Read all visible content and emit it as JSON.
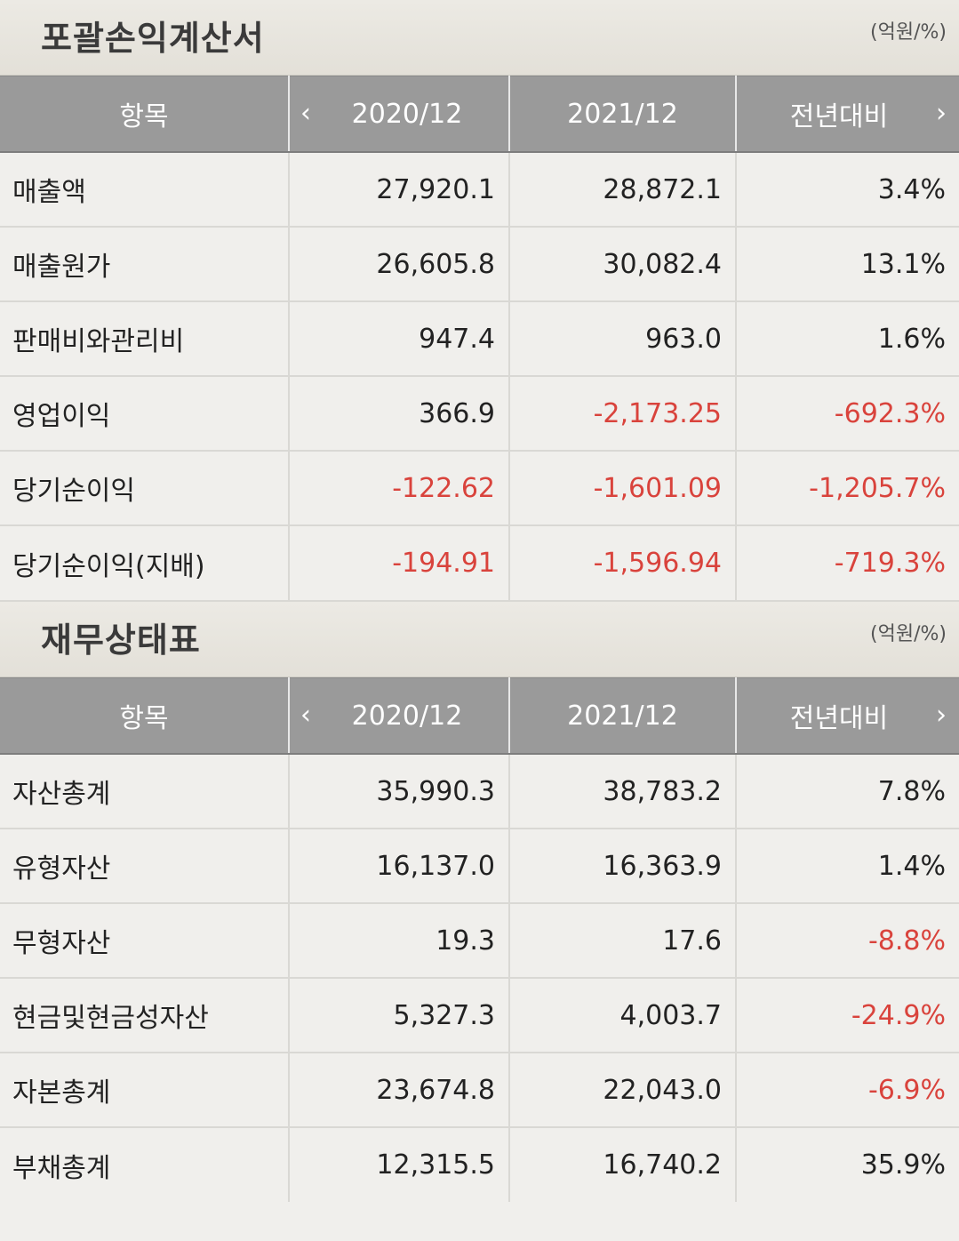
{
  "income": {
    "title": "포괄손익계산서",
    "unit": "(억원/%)",
    "headers": {
      "item": "항목",
      "y1": "2020/12",
      "y2": "2021/12",
      "yoy": "전년대비",
      "prev_icon": "chevron-left-icon",
      "next_icon": "chevron-right-icon"
    },
    "rows": [
      {
        "label": "매출액",
        "y1": "27,920.1",
        "y2": "28,872.1",
        "yoy": "3.4%"
      },
      {
        "label": "매출원가",
        "y1": "26,605.8",
        "y2": "30,082.4",
        "yoy": "13.1%"
      },
      {
        "label": "판매비와관리비",
        "y1": "947.4",
        "y2": "963.0",
        "yoy": "1.6%"
      },
      {
        "label": "영업이익",
        "y1": "366.9",
        "y2": "-2,173.25",
        "yoy": "-692.3%"
      },
      {
        "label": "당기순이익",
        "y1": "-122.62",
        "y2": "-1,601.09",
        "yoy": "-1,205.7%"
      },
      {
        "label": "당기순이익(지배)",
        "y1": "-194.91",
        "y2": "-1,596.94",
        "yoy": "-719.3%"
      }
    ]
  },
  "balance": {
    "title": "재무상태표",
    "unit": "(억원/%)",
    "headers": {
      "item": "항목",
      "y1": "2020/12",
      "y2": "2021/12",
      "yoy": "전년대비",
      "prev_icon": "chevron-left-icon",
      "next_icon": "chevron-right-icon"
    },
    "rows": [
      {
        "label": "자산총계",
        "y1": "35,990.3",
        "y2": "38,783.2",
        "yoy": "7.8%"
      },
      {
        "label": "유형자산",
        "y1": "16,137.0",
        "y2": "16,363.9",
        "yoy": "1.4%"
      },
      {
        "label": "무형자산",
        "y1": "19.3",
        "y2": "17.6",
        "yoy": "-8.8%"
      },
      {
        "label": "현금및현금성자산",
        "y1": "5,327.3",
        "y2": "4,003.7",
        "yoy": "-24.9%"
      },
      {
        "label": "자본총계",
        "y1": "23,674.8",
        "y2": "22,043.0",
        "yoy": "-6.9%"
      },
      {
        "label": "부채총계",
        "y1": "12,315.5",
        "y2": "16,740.2",
        "yoy": "35.9%"
      }
    ]
  },
  "colors": {
    "negative": "#d9433c",
    "header_bg": "#9a9a9a",
    "row_bg": "#f0efec"
  }
}
